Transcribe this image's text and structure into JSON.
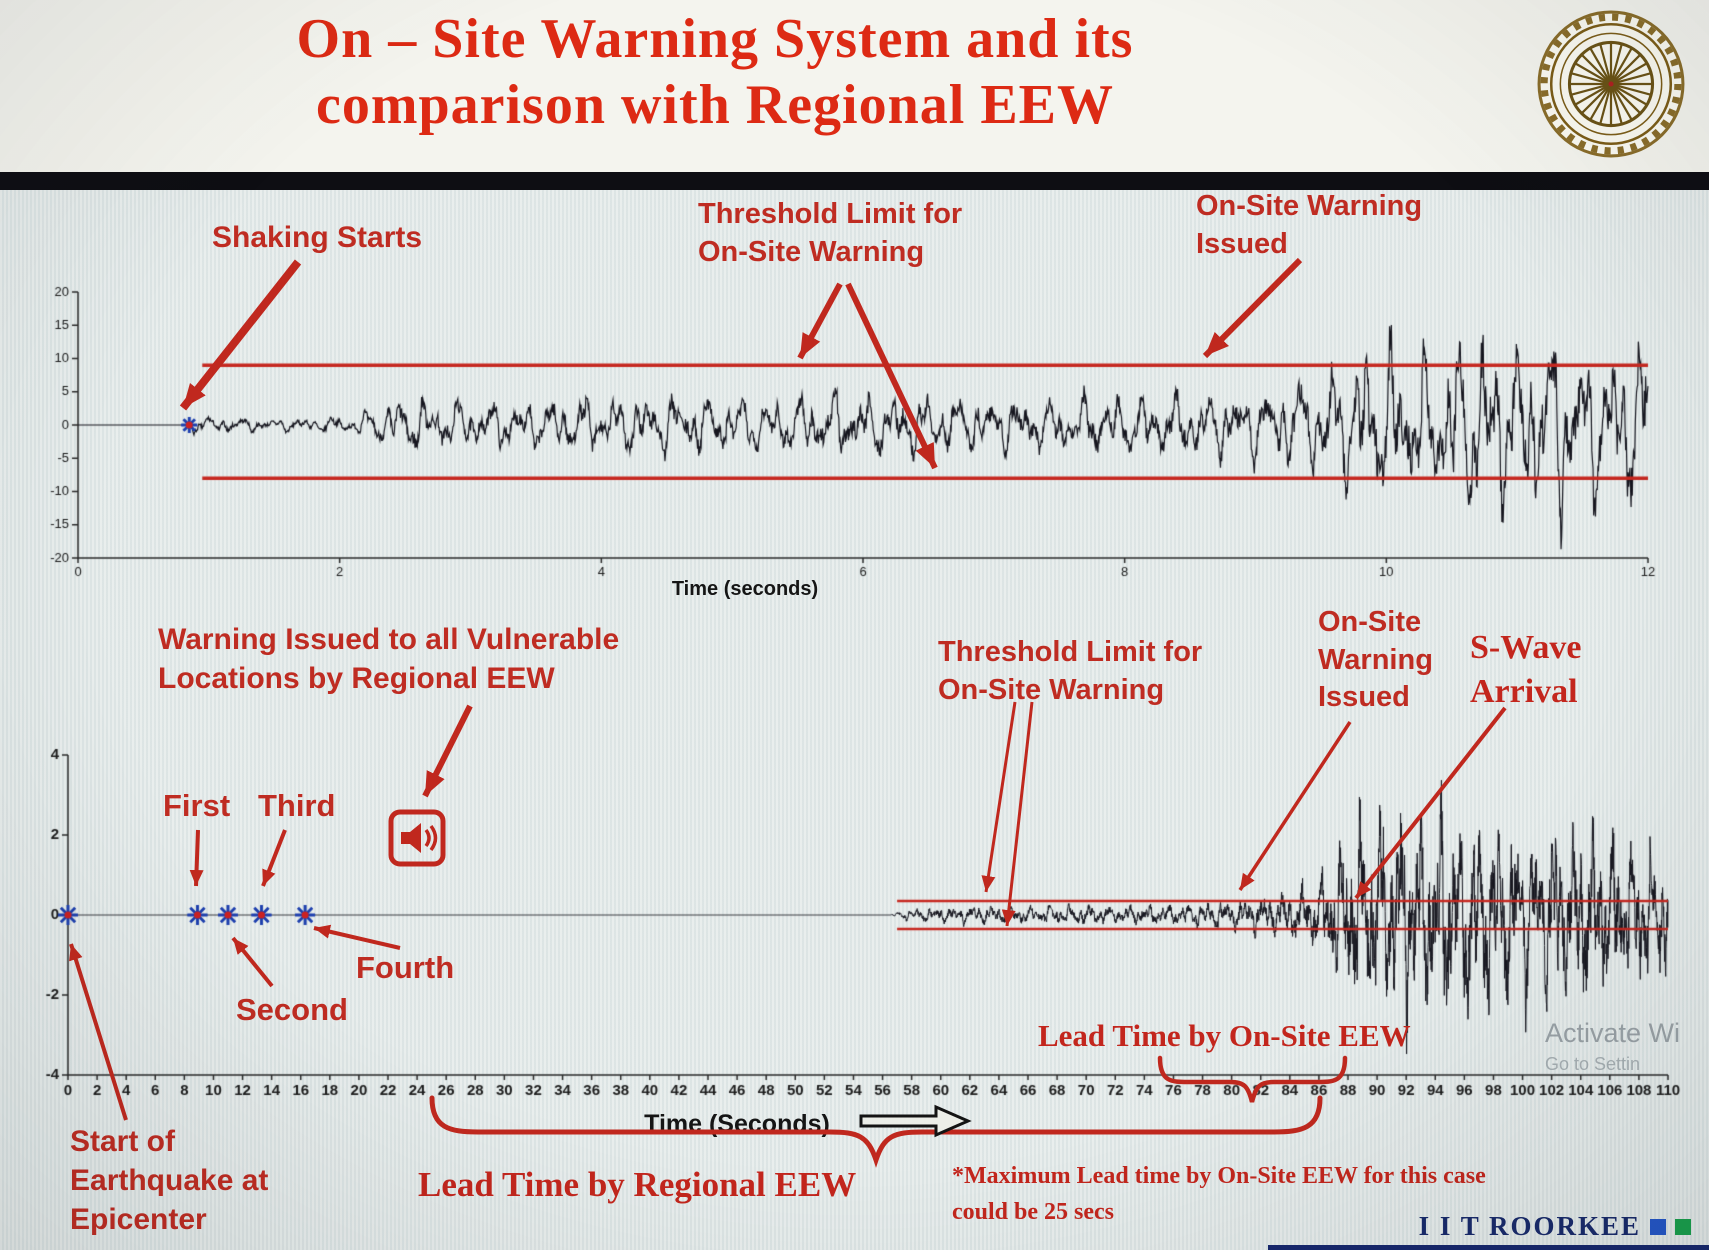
{
  "title": "On – Site Warning System and its\ncomparison with Regional EEW",
  "colors": {
    "title_red": "#dd2a14",
    "annotation_red": "#bf2c22",
    "arrow_red": "#c0281e",
    "threshold_red": "#c62820",
    "waveform_dark": "#16161f",
    "marker_blue": "#1d3fae",
    "marker_center_red": "#cc2222",
    "brand_navy": "#182a6b",
    "brand_blue_square": "#2456c8",
    "brand_green_square": "#18a04c"
  },
  "annotations": {
    "shaking_starts": "Shaking Starts",
    "threshold_top": "Threshold Limit for\nOn-Site Warning",
    "onsite_issued_top": "On-Site Warning\nIssued",
    "regional_warning": "Warning Issued to all Vulnerable\nLocations by Regional EEW",
    "threshold_bottom": "Threshold Limit for\nOn-Site Warning",
    "onsite_issued_bottom": "On-Site\nWarning\nIssued",
    "s_wave_arrival": "S-Wave\nArrival",
    "p_first": "First",
    "p_second": "Second",
    "p_third": "Third",
    "p_fourth": "Fourth",
    "lead_onsite": "Lead Time by On-Site EEW",
    "lead_regional": "Lead Time by Regional EEW",
    "start_epicenter": "Start of\nEarthquake at\nEpicenter",
    "max_note": "*Maximum Lead time by On-Site EEW for this case\ncould be 25 secs"
  },
  "footer": {
    "brand": "I I T ROORKEE"
  },
  "watermark": {
    "line1": "Activate Wi",
    "line2": "Go to Settin"
  },
  "chart_data": [
    {
      "type": "line",
      "title": "",
      "xlabel": "Time (seconds)",
      "ylabel": "",
      "xlim": [
        0,
        12
      ],
      "ylim": [
        -20,
        20
      ],
      "xticks": [
        0,
        2,
        4,
        6,
        8,
        10,
        12
      ],
      "yticks": [
        20,
        15,
        10,
        5,
        0,
        -5,
        -10,
        -15,
        -20
      ],
      "grid": false,
      "legend": "none",
      "threshold_upper": 9,
      "threshold_lower": -8,
      "threshold_x_start": 0.95,
      "signal_start_x": 0.85,
      "seed": 7,
      "noise_freqs": [
        4.2,
        7.3,
        11.1,
        15.8
      ],
      "envelope": [
        [
          0,
          0
        ],
        [
          0.82,
          0
        ],
        [
          0.88,
          1.3
        ],
        [
          1.5,
          0.9
        ],
        [
          2.1,
          1.3
        ],
        [
          2.5,
          4.2
        ],
        [
          3.1,
          3.4
        ],
        [
          3.8,
          4.2
        ],
        [
          4.5,
          4.6
        ],
        [
          5.2,
          4.0
        ],
        [
          5.9,
          5.0
        ],
        [
          6.6,
          4.4
        ],
        [
          7.3,
          4.0
        ],
        [
          8.0,
          4.6
        ],
        [
          8.7,
          5.2
        ],
        [
          9.2,
          6.5
        ],
        [
          9.6,
          9.5
        ],
        [
          10.0,
          12.5
        ],
        [
          10.3,
          10.5
        ],
        [
          10.7,
          14.5
        ],
        [
          11.0,
          12.0
        ],
        [
          11.3,
          15.0
        ],
        [
          11.6,
          12.5
        ],
        [
          12,
          13.5
        ]
      ],
      "markers": [
        {
          "x": 0.85,
          "y": 0,
          "label": "Shaking Starts"
        }
      ]
    },
    {
      "type": "line",
      "title": "",
      "xlabel": "Time (Seconds)",
      "ylabel": "",
      "xlim": [
        0,
        110
      ],
      "ylim": [
        -4,
        4
      ],
      "xticks": [
        0,
        2,
        4,
        6,
        8,
        10,
        12,
        14,
        16,
        18,
        20,
        22,
        24,
        26,
        28,
        30,
        32,
        34,
        36,
        38,
        40,
        42,
        44,
        46,
        48,
        50,
        52,
        54,
        56,
        58,
        60,
        62,
        64,
        66,
        68,
        70,
        72,
        74,
        76,
        78,
        80,
        82,
        84,
        86,
        88,
        90,
        92,
        94,
        96,
        98,
        100,
        102,
        104,
        106,
        108,
        110
      ],
      "yticks": [
        4,
        2,
        0,
        -2,
        -4
      ],
      "grid": false,
      "legend": "none",
      "threshold_upper": 0.35,
      "threshold_lower": -0.35,
      "threshold_x_start": 57,
      "regional_warning_icon_x": 24,
      "s_wave_arrival_x": 88,
      "onsite_warning_issued_x": 80,
      "max_lead_time_note_secs": 25,
      "seed": 13,
      "noise_freqs": [
        0.75,
        1.45,
        2.3,
        3.55
      ],
      "envelope": [
        [
          0,
          0
        ],
        [
          56.5,
          0
        ],
        [
          57.5,
          0.12
        ],
        [
          60,
          0.18
        ],
        [
          63,
          0.22
        ],
        [
          66,
          0.19
        ],
        [
          69,
          0.24
        ],
        [
          72,
          0.2
        ],
        [
          75,
          0.23
        ],
        [
          78,
          0.27
        ],
        [
          80,
          0.32
        ],
        [
          82,
          0.42
        ],
        [
          84,
          0.55
        ],
        [
          86,
          0.85
        ],
        [
          87.5,
          1.5
        ],
        [
          88.5,
          2.2
        ],
        [
          90,
          2.6
        ],
        [
          91,
          2.2
        ],
        [
          92,
          2.6
        ],
        [
          93,
          2.1
        ],
        [
          94,
          2.7
        ],
        [
          95,
          2.3
        ],
        [
          96,
          2.5
        ],
        [
          97,
          2.2
        ],
        [
          98,
          2.4
        ],
        [
          99,
          2.0
        ],
        [
          100,
          2.3
        ],
        [
          101,
          1.9
        ],
        [
          102,
          2.2
        ],
        [
          103,
          1.8
        ],
        [
          104,
          2.1
        ],
        [
          105,
          1.7
        ],
        [
          106,
          1.9
        ],
        [
          107,
          1.6
        ],
        [
          108,
          1.8
        ],
        [
          109,
          1.5
        ],
        [
          110,
          1.7
        ]
      ],
      "markers": [
        {
          "x": 0,
          "y": 0,
          "label": "Start of Earthquake at Epicenter"
        },
        {
          "x": 8.9,
          "y": 0,
          "label": "First"
        },
        {
          "x": 11.0,
          "y": 0,
          "label": "Second"
        },
        {
          "x": 13.3,
          "y": 0,
          "label": "Third"
        },
        {
          "x": 16.3,
          "y": 0,
          "label": "Fourth"
        }
      ]
    }
  ]
}
